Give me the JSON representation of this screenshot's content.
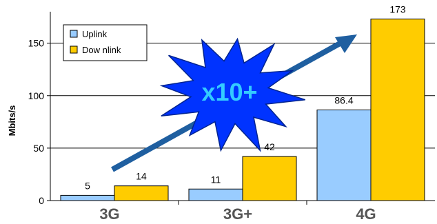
{
  "chart_data": {
    "type": "bar",
    "categories": [
      "3G",
      "3G+",
      "4G"
    ],
    "series": [
      {
        "name": "Uplink",
        "values": [
          5,
          11,
          86.4
        ],
        "color": "#99CCFF"
      },
      {
        "name": "Dow nlink",
        "values": [
          14,
          42,
          173
        ],
        "color": "#FFCC00"
      }
    ],
    "data_labels": [
      [
        "5",
        "11",
        "86.4"
      ],
      [
        "14",
        "42",
        "173"
      ]
    ],
    "ylabel": "Mbits/s",
    "xlabel": "",
    "ylim": [
      0,
      180
    ],
    "yticks": [
      0,
      50,
      100,
      150
    ],
    "grid": true,
    "legend_position": "top-left",
    "annotation": {
      "text": "x10+",
      "text_color": "#33CCFF",
      "fill_color": "#0033FF",
      "arrow_color": "#1F5FA0"
    }
  }
}
